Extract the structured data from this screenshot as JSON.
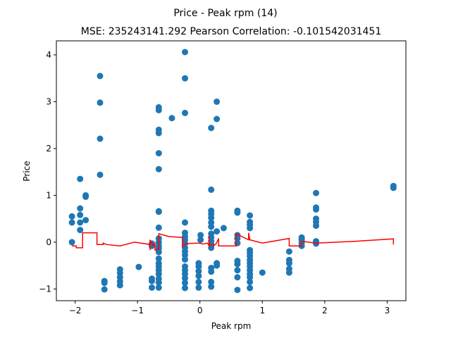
{
  "chart_data": {
    "type": "scatter",
    "title": "Price - Peak rpm (14)",
    "subtitle": "MSE: 235243141.292 Pearson Correlation: -0.101542031451",
    "xlabel": "Peak rpm",
    "ylabel": "Price",
    "xlim": [
      -2.3,
      3.3
    ],
    "ylim": [
      -1.25,
      4.3
    ],
    "xticks": [
      -2,
      -1,
      0,
      1,
      2,
      3
    ],
    "yticks": [
      -1,
      0,
      1,
      2,
      3,
      4
    ],
    "grid": false,
    "colors": {
      "scatter": "#1f77b4",
      "line": "#ff0000"
    },
    "series": [
      {
        "type": "scatter",
        "points": [
          [
            -2.05,
            0.55
          ],
          [
            -2.05,
            0.42
          ],
          [
            -2.05,
            0.0
          ],
          [
            -1.92,
            1.35
          ],
          [
            -1.92,
            0.72
          ],
          [
            -1.92,
            0.58
          ],
          [
            -1.92,
            0.42
          ],
          [
            -1.92,
            0.26
          ],
          [
            -1.83,
            1.0
          ],
          [
            -1.83,
            0.97
          ],
          [
            -1.83,
            0.47
          ],
          [
            -1.6,
            3.55
          ],
          [
            -1.6,
            2.98
          ],
          [
            -1.6,
            2.21
          ],
          [
            -1.6,
            1.44
          ],
          [
            -1.53,
            -0.83
          ],
          [
            -1.53,
            -0.87
          ],
          [
            -1.53,
            -1.01
          ],
          [
            -1.28,
            -0.58
          ],
          [
            -1.28,
            -0.66
          ],
          [
            -1.28,
            -0.75
          ],
          [
            -1.28,
            -0.84
          ],
          [
            -1.28,
            -0.92
          ],
          [
            -0.98,
            -0.53
          ],
          [
            -0.77,
            -0.03
          ],
          [
            -0.77,
            -0.08
          ],
          [
            -0.77,
            -0.78
          ],
          [
            -0.77,
            -0.83
          ],
          [
            -0.77,
            -0.97
          ],
          [
            -0.66,
            2.88
          ],
          [
            -0.66,
            2.82
          ],
          [
            -0.66,
            2.4
          ],
          [
            -0.66,
            2.33
          ],
          [
            -0.66,
            1.9
          ],
          [
            -0.66,
            1.56
          ],
          [
            -0.66,
            0.66
          ],
          [
            -0.66,
            0.65
          ],
          [
            -0.66,
            0.31
          ],
          [
            -0.66,
            0.08
          ],
          [
            -0.66,
            0.0
          ],
          [
            -0.66,
            -0.08
          ],
          [
            -0.66,
            -0.13
          ],
          [
            -0.66,
            -0.21
          ],
          [
            -0.66,
            -0.35
          ],
          [
            -0.66,
            -0.45
          ],
          [
            -0.66,
            -0.52
          ],
          [
            -0.66,
            -0.6
          ],
          [
            -0.66,
            -0.68
          ],
          [
            -0.66,
            -0.78
          ],
          [
            -0.66,
            -0.86
          ],
          [
            -0.66,
            -0.97
          ],
          [
            -0.45,
            2.65
          ],
          [
            -0.24,
            4.06
          ],
          [
            -0.24,
            3.5
          ],
          [
            -0.24,
            2.76
          ],
          [
            -0.24,
            0.42
          ],
          [
            -0.24,
            0.2
          ],
          [
            -0.24,
            0.12
          ],
          [
            -0.24,
            0.05
          ],
          [
            -0.24,
            -0.03
          ],
          [
            -0.24,
            -0.12
          ],
          [
            -0.24,
            -0.2
          ],
          [
            -0.24,
            -0.28
          ],
          [
            -0.24,
            -0.37
          ],
          [
            -0.24,
            -0.52
          ],
          [
            -0.24,
            -0.6
          ],
          [
            -0.24,
            -0.68
          ],
          [
            -0.24,
            -0.77
          ],
          [
            -0.24,
            -0.87
          ],
          [
            -0.24,
            -0.98
          ],
          [
            -0.02,
            -0.45
          ],
          [
            -0.02,
            -0.52
          ],
          [
            -0.02,
            -0.62
          ],
          [
            -0.02,
            -0.72
          ],
          [
            -0.02,
            -0.85
          ],
          [
            -0.02,
            -0.97
          ],
          [
            0.01,
            0.15
          ],
          [
            0.01,
            0.05
          ],
          [
            0.18,
            2.44
          ],
          [
            0.18,
            1.12
          ],
          [
            0.18,
            0.67
          ],
          [
            0.18,
            0.6
          ],
          [
            0.18,
            0.52
          ],
          [
            0.18,
            0.42
          ],
          [
            0.18,
            0.33
          ],
          [
            0.18,
            0.18
          ],
          [
            0.18,
            0.1
          ],
          [
            0.18,
            0.02
          ],
          [
            0.18,
            -0.05
          ],
          [
            0.18,
            -0.12
          ],
          [
            0.18,
            -0.55
          ],
          [
            0.18,
            -0.63
          ],
          [
            0.18,
            -0.85
          ],
          [
            0.18,
            -0.95
          ],
          [
            0.27,
            3.0
          ],
          [
            0.27,
            2.63
          ],
          [
            0.27,
            0.23
          ],
          [
            0.27,
            -0.45
          ],
          [
            0.27,
            -0.5
          ],
          [
            0.38,
            0.3
          ],
          [
            0.6,
            0.67
          ],
          [
            0.6,
            0.63
          ],
          [
            0.6,
            0.15
          ],
          [
            0.6,
            0.08
          ],
          [
            0.6,
            -0.02
          ],
          [
            0.6,
            -0.4
          ],
          [
            0.6,
            -0.47
          ],
          [
            0.6,
            -0.6
          ],
          [
            0.6,
            -0.75
          ],
          [
            0.6,
            -1.02
          ],
          [
            0.8,
            0.57
          ],
          [
            0.8,
            0.43
          ],
          [
            0.8,
            0.37
          ],
          [
            0.8,
            0.3
          ],
          [
            0.8,
            -0.17
          ],
          [
            0.8,
            -0.23
          ],
          [
            0.8,
            -0.3
          ],
          [
            0.8,
            -0.38
          ],
          [
            0.8,
            -0.45
          ],
          [
            0.8,
            -0.52
          ],
          [
            0.8,
            -0.6
          ],
          [
            0.8,
            -0.68
          ],
          [
            0.8,
            -0.75
          ],
          [
            0.8,
            -0.85
          ],
          [
            0.8,
            -0.98
          ],
          [
            1.0,
            -0.65
          ],
          [
            1.43,
            -0.2
          ],
          [
            1.43,
            -0.38
          ],
          [
            1.43,
            -0.45
          ],
          [
            1.43,
            -0.57
          ],
          [
            1.43,
            -0.65
          ],
          [
            1.63,
            0.1
          ],
          [
            1.63,
            0.05
          ],
          [
            1.63,
            -0.02
          ],
          [
            1.63,
            -0.08
          ],
          [
            1.86,
            1.05
          ],
          [
            1.86,
            0.74
          ],
          [
            1.86,
            0.7
          ],
          [
            1.86,
            0.5
          ],
          [
            1.86,
            0.43
          ],
          [
            1.86,
            0.35
          ],
          [
            1.86,
            0.02
          ],
          [
            1.86,
            -0.03
          ],
          [
            3.1,
            1.2
          ],
          [
            3.1,
            1.16
          ]
        ]
      },
      {
        "type": "line",
        "points": [
          [
            -2.05,
            -0.08
          ],
          [
            -1.98,
            -0.08
          ],
          [
            -1.98,
            -0.12
          ],
          [
            -1.88,
            -0.12
          ],
          [
            -1.88,
            0.2
          ],
          [
            -1.65,
            0.2
          ],
          [
            -1.65,
            -0.05
          ],
          [
            -1.55,
            -0.05
          ],
          [
            -1.55,
            -0.02
          ],
          [
            -1.5,
            -0.05
          ],
          [
            -1.28,
            -0.08
          ],
          [
            -1.05,
            0.0
          ],
          [
            -0.8,
            -0.05
          ],
          [
            -0.8,
            -0.17
          ],
          [
            -0.8,
            0.05
          ],
          [
            -0.75,
            -0.08
          ],
          [
            -0.72,
            -0.03
          ],
          [
            -0.72,
            -0.17
          ],
          [
            -0.66,
            -0.15
          ],
          [
            -0.66,
            0.18
          ],
          [
            -0.5,
            0.12
          ],
          [
            -0.28,
            0.1
          ],
          [
            -0.28,
            -0.1
          ],
          [
            -0.22,
            -0.03
          ],
          [
            -0.02,
            -0.02
          ],
          [
            0.05,
            -0.04
          ],
          [
            0.12,
            -0.02
          ],
          [
            0.15,
            -0.08
          ],
          [
            0.15,
            0.13
          ],
          [
            0.15,
            -0.05
          ],
          [
            0.22,
            -0.06
          ],
          [
            0.22,
            -0.08
          ],
          [
            0.26,
            -0.03
          ],
          [
            0.3,
            0.08
          ],
          [
            0.3,
            -0.08
          ],
          [
            0.58,
            -0.08
          ],
          [
            0.58,
            0.18
          ],
          [
            0.78,
            0.05
          ],
          [
            0.78,
            0.2
          ],
          [
            0.8,
            0.05
          ],
          [
            1.0,
            -0.02
          ],
          [
            1.43,
            0.08
          ],
          [
            1.43,
            -0.08
          ],
          [
            1.63,
            -0.08
          ],
          [
            1.63,
            0.02
          ],
          [
            1.86,
            -0.02
          ],
          [
            2.5,
            0.02
          ],
          [
            3.1,
            0.07
          ],
          [
            3.1,
            -0.05
          ]
        ]
      }
    ]
  }
}
